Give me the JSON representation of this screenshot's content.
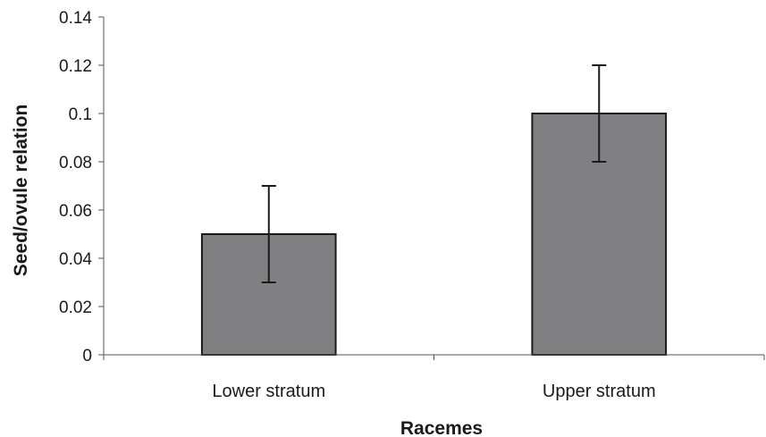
{
  "chart_data": {
    "type": "bar",
    "title": "",
    "xlabel": "Racemes",
    "ylabel": "Seed/ovule relation",
    "categories": [
      "Lower stratum",
      "Upper stratum"
    ],
    "values": [
      0.05,
      0.1
    ],
    "error": [
      0.02,
      0.02
    ],
    "ylim": [
      0,
      0.14
    ],
    "yticks": [
      0,
      0.02,
      0.04,
      0.06,
      0.08,
      0.1,
      0.12,
      0.14
    ],
    "ytick_labels": [
      "0",
      "0.02",
      "0.04",
      "0.06",
      "0.08",
      "0.1",
      "0.12",
      "0.14"
    ],
    "grid": false,
    "legend": "none",
    "colors": {
      "bar_fill": "#808083",
      "bar_stroke": "#1a1a1a",
      "error_bar": "#1a1a1a",
      "axis": "#555555"
    }
  }
}
